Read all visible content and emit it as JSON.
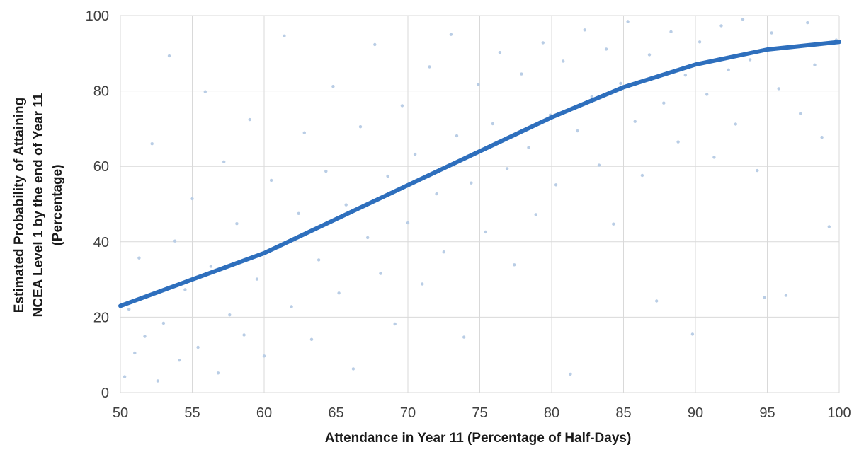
{
  "chart_data": {
    "type": "scatter",
    "title": "",
    "xlabel": "Attendance in Year 11 (Percentage of Half-Days)",
    "ylabel": [
      "Estimated Probability of Attaining",
      "NCEA Level 1 by the end of Year 11",
      "(Percentage)"
    ],
    "xlim": [
      50,
      100
    ],
    "ylim": [
      0,
      100
    ],
    "x_ticks": [
      50,
      55,
      60,
      65,
      70,
      75,
      80,
      85,
      90,
      95,
      100
    ],
    "y_ticks": [
      0,
      20,
      40,
      60,
      80,
      100
    ],
    "grid": true,
    "legend": "none",
    "series": [
      {
        "kind": "scatter",
        "color": "#b9cde5",
        "description_density": "sparse near 50, very dense above 80",
        "values": [
          [
            50.3,
            4.2
          ],
          [
            50.6,
            22.1
          ],
          [
            51.0,
            10.5
          ],
          [
            51.3,
            35.7
          ],
          [
            51.7,
            14.9
          ],
          [
            52.2,
            66.0
          ],
          [
            52.6,
            3.1
          ],
          [
            53.0,
            18.4
          ],
          [
            53.4,
            89.3
          ],
          [
            53.8,
            40.2
          ],
          [
            54.1,
            8.6
          ],
          [
            54.5,
            27.3
          ],
          [
            55.0,
            51.4
          ],
          [
            55.4,
            12.0
          ],
          [
            55.9,
            79.8
          ],
          [
            56.3,
            33.5
          ],
          [
            56.8,
            5.2
          ],
          [
            57.2,
            61.2
          ],
          [
            57.6,
            20.6
          ],
          [
            58.1,
            44.8
          ],
          [
            58.6,
            15.3
          ],
          [
            59.0,
            72.4
          ],
          [
            59.5,
            30.1
          ],
          [
            60.0,
            9.7
          ],
          [
            60.5,
            56.3
          ],
          [
            61.0,
            38.5
          ],
          [
            61.4,
            94.6
          ],
          [
            61.9,
            22.8
          ],
          [
            62.4,
            47.5
          ],
          [
            62.8,
            68.9
          ],
          [
            63.3,
            14.1
          ],
          [
            63.8,
            35.2
          ],
          [
            64.3,
            58.7
          ],
          [
            64.8,
            81.2
          ],
          [
            65.2,
            26.4
          ],
          [
            65.7,
            49.8
          ],
          [
            66.2,
            6.3
          ],
          [
            66.7,
            70.5
          ],
          [
            67.2,
            41.1
          ],
          [
            67.7,
            92.3
          ],
          [
            68.1,
            31.6
          ],
          [
            68.6,
            57.4
          ],
          [
            69.1,
            18.2
          ],
          [
            69.6,
            76.1
          ],
          [
            70.0,
            45.0
          ],
          [
            70.5,
            63.2
          ],
          [
            71.0,
            28.8
          ],
          [
            71.5,
            86.4
          ],
          [
            72.0,
            52.7
          ],
          [
            72.5,
            37.3
          ],
          [
            73.0,
            95.0
          ],
          [
            73.4,
            68.1
          ],
          [
            73.9,
            14.7
          ],
          [
            74.4,
            55.6
          ],
          [
            74.9,
            81.7
          ],
          [
            75.4,
            42.6
          ],
          [
            75.9,
            71.3
          ],
          [
            76.4,
            90.2
          ],
          [
            76.9,
            59.4
          ],
          [
            77.4,
            33.9
          ],
          [
            77.9,
            84.5
          ],
          [
            78.4,
            65.0
          ],
          [
            78.9,
            47.2
          ],
          [
            79.4,
            92.8
          ],
          [
            79.9,
            73.6
          ],
          [
            80.3,
            55.1
          ],
          [
            80.8,
            87.9
          ],
          [
            81.3,
            4.9
          ],
          [
            81.8,
            69.4
          ],
          [
            82.3,
            96.2
          ],
          [
            82.8,
            78.5
          ],
          [
            83.3,
            60.3
          ],
          [
            83.8,
            91.1
          ],
          [
            84.3,
            44.7
          ],
          [
            84.8,
            82.0
          ],
          [
            85.3,
            98.4
          ],
          [
            85.8,
            71.9
          ],
          [
            86.3,
            57.6
          ],
          [
            86.8,
            89.6
          ],
          [
            87.3,
            24.3
          ],
          [
            87.8,
            76.8
          ],
          [
            88.3,
            95.7
          ],
          [
            88.8,
            66.5
          ],
          [
            89.3,
            84.2
          ],
          [
            89.8,
            15.5
          ],
          [
            90.3,
            93.0
          ],
          [
            90.8,
            79.1
          ],
          [
            91.3,
            62.4
          ],
          [
            91.8,
            97.3
          ],
          [
            92.3,
            85.6
          ],
          [
            92.8,
            71.2
          ],
          [
            93.3,
            99.0
          ],
          [
            93.8,
            88.3
          ],
          [
            94.3,
            58.9
          ],
          [
            94.8,
            25.2
          ],
          [
            95.3,
            95.4
          ],
          [
            95.8,
            80.6
          ],
          [
            96.3,
            25.8
          ],
          [
            96.8,
            91.7
          ],
          [
            97.3,
            74.0
          ],
          [
            97.8,
            98.1
          ],
          [
            98.3,
            86.9
          ],
          [
            98.8,
            67.7
          ],
          [
            99.3,
            44.0
          ],
          [
            99.8,
            93.5
          ]
        ]
      },
      {
        "kind": "line",
        "color": "#2e6fbd",
        "x": [
          50,
          55,
          60,
          65,
          70,
          75,
          80,
          85,
          90,
          95,
          100
        ],
        "y": [
          23,
          30,
          37,
          46,
          55,
          64,
          73,
          81,
          87,
          91,
          93
        ]
      }
    ]
  }
}
